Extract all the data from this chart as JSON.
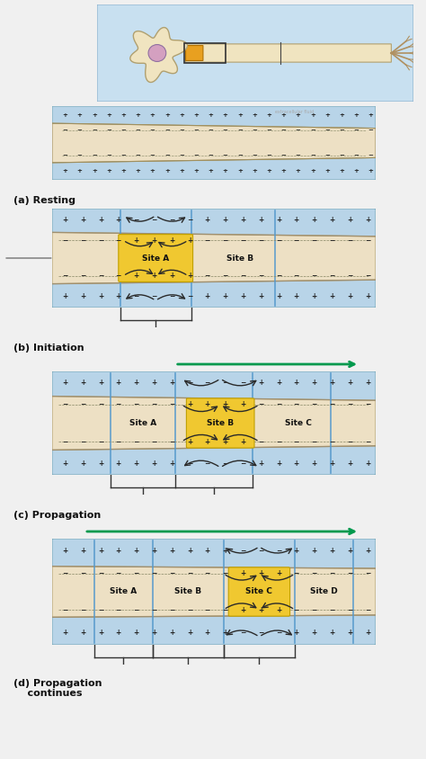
{
  "bg_color": "#f0f0f0",
  "light_blue": "#b8d4e8",
  "axon_beige": "#ede0c4",
  "yellow_active": "#f0c830",
  "arrow_color": "#2a2a2a",
  "green_arrow": "#00994d",
  "gray_arrow": "#888888",
  "panel_labels": [
    "(a) Resting",
    "(b) Initiation",
    "(c) Propagation",
    "(d) Propagation\n    continues"
  ],
  "site_labels_a": [
    "Site A",
    "Site B"
  ],
  "site_labels_b": [
    "Site A",
    "Site B",
    "Site C"
  ],
  "site_labels_c": [
    "Site A",
    "Site B",
    "Site C",
    "Site D"
  ],
  "neuron_bg": "#c8e0f0",
  "soma_color": "#f0e4c0",
  "nucleus_color": "#d4a0c0",
  "axon_shaft": "#f0e4c0",
  "myelin_color": "#e8a020"
}
